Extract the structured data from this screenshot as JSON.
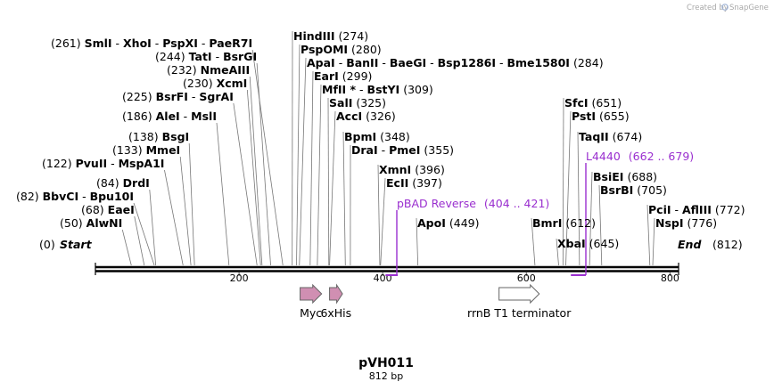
{
  "plasmid": {
    "name": "pVH011",
    "length_label": "812 bp",
    "length": 812
  },
  "credit": "Created by",
  "brand": "SnapGene",
  "scale_ticks": [
    "200",
    "400",
    "600",
    "800"
  ],
  "start_label": "Start",
  "start_pos": "(0)",
  "end_label": "End",
  "end_pos": "(812)",
  "sites": [
    {
      "pos": "(261)",
      "names": [
        "SmlI",
        "XhoI",
        "PspXI",
        "PaeR7I"
      ]
    },
    {
      "pos": "(244)",
      "names": [
        "TatI",
        "BsrGI"
      ]
    },
    {
      "pos": "(232)",
      "names": [
        "NmeAIII"
      ]
    },
    {
      "pos": "(230)",
      "names": [
        "XcmI"
      ]
    },
    {
      "pos": "(225)",
      "names": [
        "BsrFI",
        "SgrAI"
      ]
    },
    {
      "pos": "(186)",
      "names": [
        "AleI",
        "MslI"
      ]
    },
    {
      "pos": "(138)",
      "names": [
        "BsgI"
      ]
    },
    {
      "pos": "(133)",
      "names": [
        "MmeI"
      ]
    },
    {
      "pos": "(122)",
      "names": [
        "PvuII",
        "MspA1I"
      ]
    },
    {
      "pos": "(84)",
      "names": [
        "DrdI"
      ]
    },
    {
      "pos": "(82)",
      "names": [
        "BbvCI",
        "Bpu10I"
      ]
    },
    {
      "pos": "(68)",
      "names": [
        "EaeI"
      ]
    },
    {
      "pos": "(50)",
      "names": [
        "AlwNI"
      ]
    },
    {
      "pos": "(274)",
      "names": [
        "HindIII"
      ]
    },
    {
      "pos": "(280)",
      "names": [
        "PspOMI"
      ]
    },
    {
      "pos": "(284)",
      "names": [
        "ApaI",
        "BanII",
        "BaeGI",
        "Bsp1286I",
        "Bme1580I"
      ]
    },
    {
      "pos": "(299)",
      "names": [
        "EarI"
      ]
    },
    {
      "pos": "(309)",
      "names": [
        "MfII *",
        "BstYI"
      ]
    },
    {
      "pos": "(325)",
      "names": [
        "SalI"
      ]
    },
    {
      "pos": "(326)",
      "names": [
        "AccI"
      ]
    },
    {
      "pos": "(348)",
      "names": [
        "BpmI"
      ]
    },
    {
      "pos": "(355)",
      "names": [
        "DraI",
        "PmeI"
      ]
    },
    {
      "pos": "(396)",
      "names": [
        "XmnI"
      ]
    },
    {
      "pos": "(397)",
      "names": [
        "EcII"
      ]
    },
    {
      "pos": "(449)",
      "names": [
        "ApoI"
      ]
    },
    {
      "pos": "(612)",
      "names": [
        "BmrI"
      ]
    },
    {
      "pos": "(645)",
      "names": [
        "XbaI"
      ]
    },
    {
      "pos": "(651)",
      "names": [
        "SfcI"
      ]
    },
    {
      "pos": "(655)",
      "names": [
        "PstI"
      ]
    },
    {
      "pos": "(674)",
      "names": [
        "TaqII"
      ]
    },
    {
      "pos": "(688)",
      "names": [
        "BsiEI"
      ]
    },
    {
      "pos": "(705)",
      "names": [
        "BsrBI"
      ]
    },
    {
      "pos": "(772)",
      "names": [
        "PciI",
        "AflIII"
      ]
    },
    {
      "pos": "(776)",
      "names": [
        "NspI"
      ]
    }
  ],
  "primers": [
    {
      "name": "pBAD Reverse",
      "range": "(404 .. 421)",
      "start": 404,
      "end": 421
    },
    {
      "name": "L4440",
      "range": "(662 .. 679)",
      "start": 662,
      "end": 679
    }
  ],
  "features": [
    {
      "name": "Myc",
      "start": 285,
      "end": 315,
      "color": "#d08fb2"
    },
    {
      "name": "6xHis",
      "start": 326,
      "end": 344,
      "color": "#d08fb2"
    },
    {
      "name": "rrnB T1 terminator",
      "start": 562,
      "end": 618,
      "color": "#ffffff"
    }
  ],
  "colors": {
    "primer": "#9a2fcf",
    "line": "#000000",
    "tick": "#888888"
  }
}
